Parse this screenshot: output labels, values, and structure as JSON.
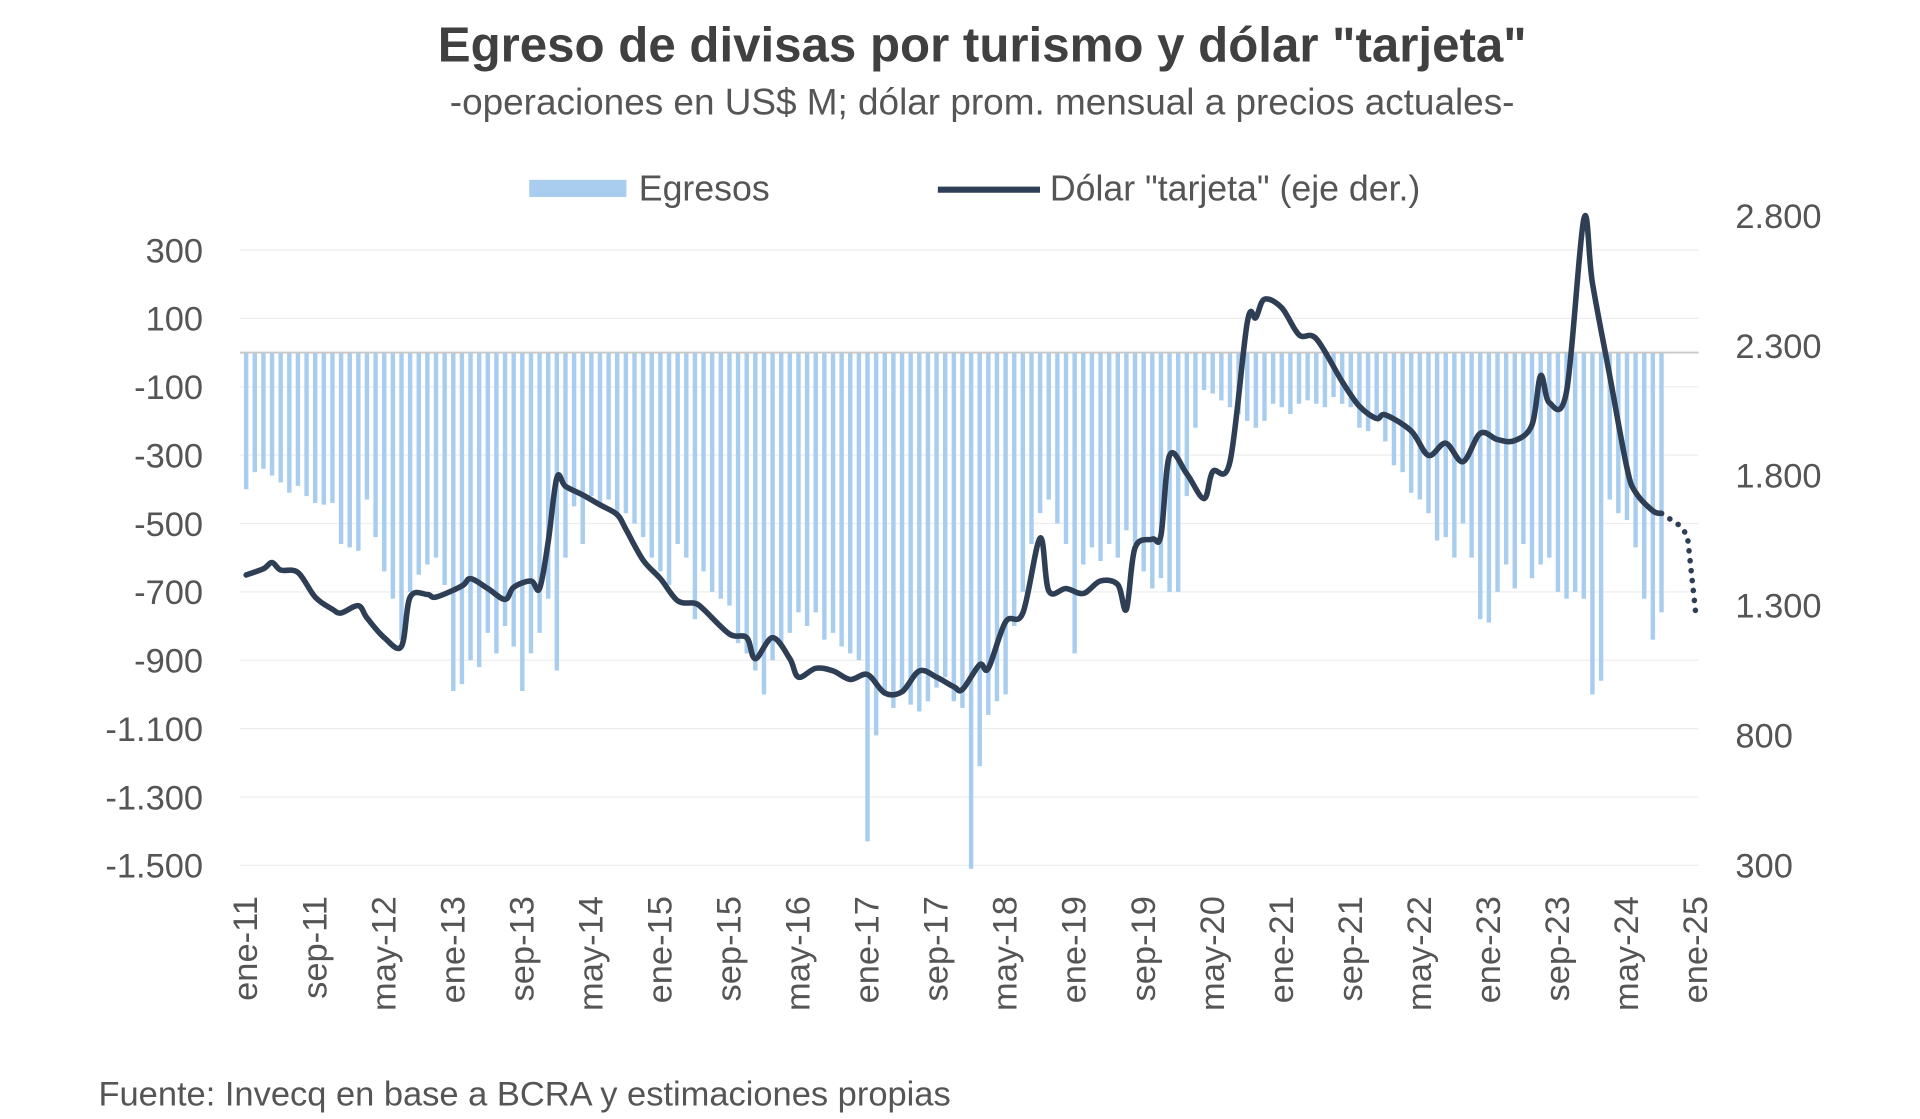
{
  "chart_data": {
    "type": "bar+line",
    "title": "Egreso de divisas por turismo y dólar \"tarjeta\"",
    "subtitle": "-operaciones en US$ M; dólar prom. mensual a precios actuales-",
    "source": "Fuente: Invecq en base a BCRA y estimaciones propias",
    "legend": {
      "placement": "top",
      "bars": "Egresos",
      "line": "Dólar \"tarjeta\" (eje der.)"
    },
    "colors": {
      "bars": "#a9cdee",
      "line": "#2e3e55",
      "grid": "#eeeeee",
      "zero": "#c8c8c8",
      "text": "#555555",
      "title": "#404040"
    },
    "left_axis": {
      "ylim": [
        -1500,
        300
      ],
      "ticks": [
        "300",
        "100",
        "-100",
        "-300",
        "-500",
        "-700",
        "-900",
        "-1.100",
        "-1.300",
        "-1.500"
      ],
      "tick_values": [
        300,
        100,
        -100,
        -300,
        -500,
        -700,
        -900,
        -1100,
        -1300,
        -1500
      ]
    },
    "right_axis": {
      "ylim": [
        300,
        2800
      ],
      "ticks": [
        "2.800",
        "2.300",
        "1.800",
        "1.300",
        "800",
        "300"
      ],
      "tick_values": [
        2800,
        2300,
        1800,
        1300,
        800,
        300
      ]
    },
    "x_start": "ene-11",
    "x_months_total": 168,
    "x_ticks": [
      "ene-11",
      "sep-11",
      "may-12",
      "ene-13",
      "sep-13",
      "may-14",
      "ene-15",
      "sep-15",
      "may-16",
      "ene-17",
      "sep-17",
      "may-18",
      "ene-19",
      "sep-19",
      "may-20",
      "ene-21",
      "sep-21",
      "may-22",
      "ene-23",
      "sep-23",
      "may-24",
      "ene-25"
    ],
    "x_tick_step_months": 8,
    "series": [
      {
        "name": "Egresos",
        "type": "bar",
        "axis": "left",
        "values": [
          -400,
          -350,
          -340,
          -360,
          -380,
          -410,
          -390,
          -420,
          -440,
          -445,
          -440,
          -560,
          -570,
          -580,
          -430,
          -540,
          -640,
          -720,
          -840,
          -700,
          -650,
          -620,
          -600,
          -680,
          -990,
          -970,
          -900,
          -920,
          -820,
          -880,
          -800,
          -860,
          -990,
          -880,
          -820,
          -720,
          -930,
          -600,
          -450,
          -560,
          -420,
          -440,
          -430,
          -480,
          -470,
          -500,
          -540,
          -600,
          -640,
          -680,
          -560,
          -600,
          -780,
          -640,
          -700,
          -720,
          -740,
          -850,
          -880,
          -930,
          -1000,
          -900,
          -860,
          -820,
          -760,
          -800,
          -760,
          -840,
          -820,
          -860,
          -880,
          -900,
          -1430,
          -1120,
          -1000,
          -1040,
          -1000,
          -1030,
          -1050,
          -1020,
          -980,
          -950,
          -1020,
          -1040,
          -1510,
          -1210,
          -1060,
          -1020,
          -1000,
          -800,
          -700,
          -560,
          -470,
          -430,
          -500,
          -560,
          -880,
          -620,
          -570,
          -610,
          -560,
          -600,
          -520,
          -560,
          -640,
          -690,
          -660,
          -700,
          -700,
          -420,
          -220,
          -110,
          -120,
          -140,
          -160,
          -180,
          -200,
          -220,
          -200,
          -150,
          -160,
          -180,
          -150,
          -140,
          -150,
          -160,
          -130,
          -150,
          -160,
          -220,
          -230,
          -200,
          -260,
          -330,
          -350,
          -410,
          -430,
          -470,
          -550,
          -540,
          -600,
          -500,
          -600,
          -780,
          -790,
          -700,
          -620,
          -690,
          -560,
          -660,
          -620,
          -600,
          -700,
          -720,
          -700,
          -720,
          -1000,
          -960,
          -430,
          -470,
          -490,
          -570,
          -720,
          -840,
          -760
        ]
      },
      {
        "name": "Dólar \"tarjeta\" (eje der.)",
        "type": "line",
        "axis": "right",
        "points": [
          [
            0,
            1417
          ],
          [
            2,
            1441
          ],
          [
            3,
            1465
          ],
          [
            4,
            1436
          ],
          [
            6,
            1427
          ],
          [
            8,
            1332
          ],
          [
            10,
            1285
          ],
          [
            11,
            1271
          ],
          [
            13,
            1299
          ],
          [
            14,
            1252
          ],
          [
            16,
            1176
          ],
          [
            18,
            1143
          ],
          [
            19,
            1332
          ],
          [
            21,
            1342
          ],
          [
            22,
            1332
          ],
          [
            25,
            1375
          ],
          [
            26,
            1403
          ],
          [
            28,
            1365
          ],
          [
            30,
            1323
          ],
          [
            31,
            1370
          ],
          [
            33,
            1394
          ],
          [
            34,
            1365
          ],
          [
            35,
            1545
          ],
          [
            36,
            1791
          ],
          [
            37,
            1758
          ],
          [
            39,
            1725
          ],
          [
            41,
            1687
          ],
          [
            43,
            1649
          ],
          [
            44,
            1593
          ],
          [
            46,
            1474
          ],
          [
            48,
            1403
          ],
          [
            50,
            1318
          ],
          [
            52,
            1308
          ],
          [
            53,
            1285
          ],
          [
            56,
            1190
          ],
          [
            58,
            1176
          ],
          [
            59,
            1095
          ],
          [
            61,
            1176
          ],
          [
            63,
            1095
          ],
          [
            64,
            1024
          ],
          [
            66,
            1058
          ],
          [
            68,
            1048
          ],
          [
            70,
            1015
          ],
          [
            72,
            1034
          ],
          [
            74,
            963
          ],
          [
            76,
            968
          ],
          [
            78,
            1048
          ],
          [
            80,
            1024
          ],
          [
            82,
            987
          ],
          [
            83,
            977
          ],
          [
            85,
            1072
          ],
          [
            86,
            1058
          ],
          [
            88,
            1237
          ],
          [
            90,
            1271
          ],
          [
            92,
            1559
          ],
          [
            93,
            1356
          ],
          [
            95,
            1365
          ],
          [
            97,
            1346
          ],
          [
            99,
            1394
          ],
          [
            101,
            1380
          ],
          [
            102,
            1285
          ],
          [
            103,
            1522
          ],
          [
            105,
            1555
          ],
          [
            106,
            1569
          ],
          [
            107,
            1877
          ],
          [
            109,
            1806
          ],
          [
            111,
            1711
          ],
          [
            112,
            1815
          ],
          [
            114,
            1853
          ],
          [
            116,
            2388
          ],
          [
            117,
            2407
          ],
          [
            118,
            2478
          ],
          [
            120,
            2445
          ],
          [
            122,
            2341
          ],
          [
            124,
            2326
          ],
          [
            127,
            2161
          ],
          [
            129,
            2066
          ],
          [
            131,
            2019
          ],
          [
            132,
            2033
          ],
          [
            135,
            1971
          ],
          [
            137,
            1877
          ],
          [
            139,
            1924
          ],
          [
            141,
            1853
          ],
          [
            143,
            1962
          ],
          [
            145,
            1938
          ],
          [
            147,
            1934
          ],
          [
            149,
            1995
          ],
          [
            150,
            2184
          ],
          [
            151,
            2080
          ],
          [
            153,
            2123
          ],
          [
            155,
            2786
          ],
          [
            156,
            2540
          ],
          [
            158,
            2184
          ],
          [
            160,
            1829
          ],
          [
            161,
            1735
          ],
          [
            163,
            1664
          ],
          [
            164,
            1654
          ]
        ],
        "projected_points": [
          [
            164,
            1654
          ],
          [
            166,
            1610
          ],
          [
            167,
            1570
          ],
          [
            168,
            1260
          ]
        ]
      }
    ]
  }
}
